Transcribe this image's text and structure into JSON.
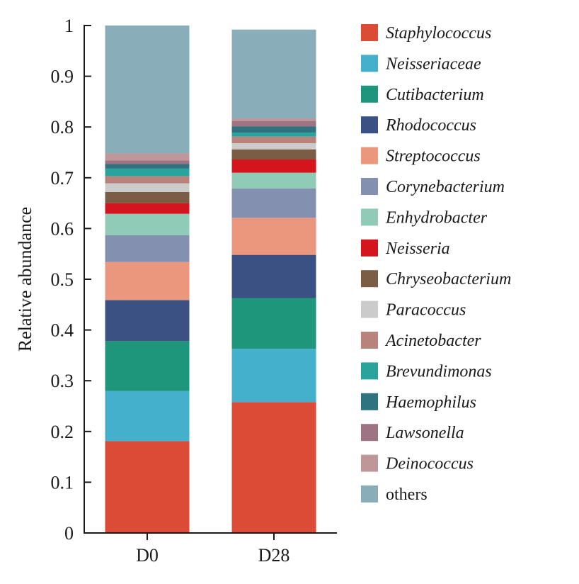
{
  "chart_data": {
    "type": "bar",
    "stacked": true,
    "title": "",
    "xlabel": "",
    "ylabel": "Relative abundance",
    "ylim": [
      0,
      1
    ],
    "yticks": [
      "0",
      "0.1",
      "0.2",
      "0.3",
      "0.4",
      "0.5",
      "0.6",
      "0.7",
      "0.8",
      "0.9",
      "1"
    ],
    "categories": [
      "D0",
      "D28"
    ],
    "legend_position": "right",
    "grid": false,
    "series": [
      {
        "name": "Staphylococcus",
        "color": "#db4b36",
        "italic": true,
        "values": [
          0.181,
          0.258
        ]
      },
      {
        "name": "Neisseriaceae",
        "color": "#44b0cb",
        "italic": true,
        "values": [
          0.099,
          0.105
        ]
      },
      {
        "name": "Cutibacterium",
        "color": "#1e967b",
        "italic": true,
        "values": [
          0.098,
          0.1
        ]
      },
      {
        "name": "Rhodococcus",
        "color": "#3b5184",
        "italic": true,
        "values": [
          0.081,
          0.085
        ]
      },
      {
        "name": "Streptococcus",
        "color": "#ea977d",
        "italic": true,
        "values": [
          0.075,
          0.073
        ]
      },
      {
        "name": "Corynebacterium",
        "color": "#8390b0",
        "italic": true,
        "values": [
          0.053,
          0.058
        ]
      },
      {
        "name": "Enhydrobacter",
        "color": "#8fcbb7",
        "italic": true,
        "values": [
          0.042,
          0.031
        ]
      },
      {
        "name": "Neisseria",
        "color": "#d4151d",
        "italic": true,
        "values": [
          0.021,
          0.026
        ]
      },
      {
        "name": "Chryseobacterium",
        "color": "#7b5d45",
        "italic": true,
        "values": [
          0.022,
          0.02
        ]
      },
      {
        "name": "Paracoccus",
        "color": "#cbcbcb",
        "italic": true,
        "values": [
          0.017,
          0.012
        ]
      },
      {
        "name": "Acinetobacter",
        "color": "#b9837b",
        "italic": true,
        "values": [
          0.014,
          0.013
        ]
      },
      {
        "name": "Brevundimonas",
        "color": "#2aa39c",
        "italic": true,
        "values": [
          0.015,
          0.008
        ]
      },
      {
        "name": "Haemophilus",
        "color": "#2e737f",
        "italic": true,
        "values": [
          0.009,
          0.012
        ]
      },
      {
        "name": "Lawsonella",
        "color": "#9e7484",
        "italic": true,
        "values": [
          0.007,
          0.011
        ]
      },
      {
        "name": "Deinococcus",
        "color": "#c09799",
        "italic": true,
        "values": [
          0.014,
          0.005
        ]
      },
      {
        "name": "others",
        "color": "#8aaeb9",
        "italic": false,
        "values": [
          0.252,
          0.175
        ]
      }
    ]
  }
}
